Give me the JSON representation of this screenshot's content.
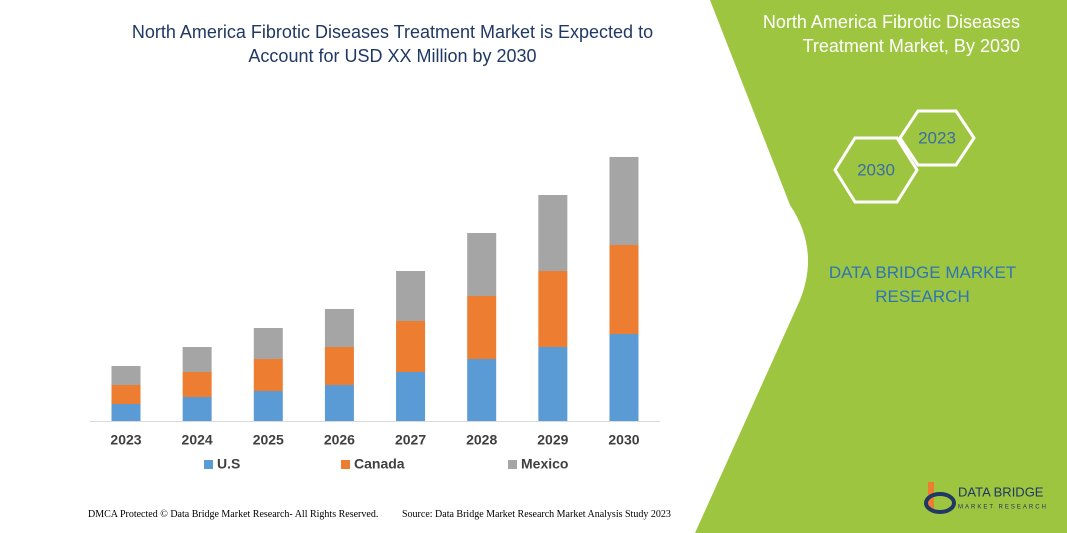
{
  "chart_data": {
    "type": "bar",
    "stacked": true,
    "title": "North America Fibrotic Diseases Treatment Market is Expected to Account for USD XX Million by 2030",
    "categories": [
      "2023",
      "2024",
      "2025",
      "2026",
      "2027",
      "2028",
      "2029",
      "2030"
    ],
    "series": [
      {
        "name": "U.S",
        "color": "#5b9bd5",
        "values": [
          17,
          24,
          30,
          36,
          49,
          62,
          74,
          87
        ]
      },
      {
        "name": "Canada",
        "color": "#ed7d31",
        "values": [
          19,
          25,
          32,
          38,
          51,
          63,
          76,
          89
        ]
      },
      {
        "name": "Mexico",
        "color": "#a5a5a5",
        "values": [
          19,
          25,
          31,
          38,
          50,
          63,
          76,
          88
        ]
      }
    ]
  },
  "side_panel": {
    "title": "North America Fibrotic Diseases Treatment Market, By 2030",
    "hexagons": [
      "2023",
      "2030"
    ],
    "brand": "DATA BRIDGE MARKET RESEARCH"
  },
  "footer": {
    "copyright": "DMCA Protected © Data Bridge Market Research-  All Rights Reserved.",
    "source": "Source: Data Bridge Market Research  Market Analysis Study 2023"
  },
  "logo": {
    "name": "DATA BRIDGE",
    "tagline": "MARKET RESEARCH"
  }
}
